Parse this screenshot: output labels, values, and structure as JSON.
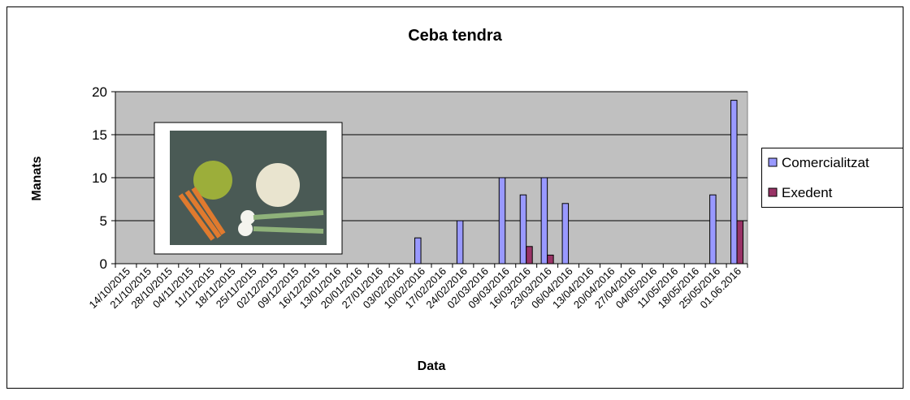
{
  "chart_data": {
    "type": "bar",
    "title": "Ceba tendra",
    "x_label": "Data",
    "y_label": "Manats",
    "categories": [
      "14/10/2015",
      "21/10/2015",
      "28/10/2015",
      "04/11/2015",
      "11/11/2015",
      "18/11/2015",
      "25/11/2015",
      "02/12/2015",
      "09/12/2015",
      "16/12/2015",
      "13/01/2016",
      "20/01/2016",
      "27/01/2016",
      "03/02/2016",
      "10/02/2016",
      "17/02/2016",
      "24/02/2016",
      "02/03/2016",
      "09/03/2016",
      "16/03/2016",
      "23/03/2016",
      "06/04/2016",
      "13/04/2016",
      "20/04/2016",
      "27/04/2016",
      "04/05/2016",
      "11/05/2016",
      "18/05/2016",
      "25/05/2016",
      "01.06.2016"
    ],
    "series": [
      {
        "name": "Comercialitzat",
        "color": "#9999ff",
        "values": [
          0,
          0,
          0,
          0,
          0,
          0,
          0,
          0,
          0,
          0,
          0,
          0,
          0,
          0,
          3,
          0,
          5,
          0,
          10,
          8,
          10,
          7,
          0,
          0,
          0,
          0,
          0,
          0,
          8,
          19
        ]
      },
      {
        "name": "Exedent",
        "color": "#993366",
        "values": [
          0,
          0,
          0,
          0,
          0,
          0,
          0,
          0,
          0,
          0,
          0,
          0,
          0,
          0,
          0,
          0,
          0,
          0,
          0,
          2,
          1,
          0,
          0,
          0,
          0,
          0,
          0,
          0,
          0,
          5
        ]
      }
    ],
    "ylim": [
      0,
      20
    ],
    "yticks": [
      0,
      5,
      10,
      15,
      20
    ],
    "grid": true,
    "legend": "right",
    "plot_background": "#c0c0c0"
  }
}
